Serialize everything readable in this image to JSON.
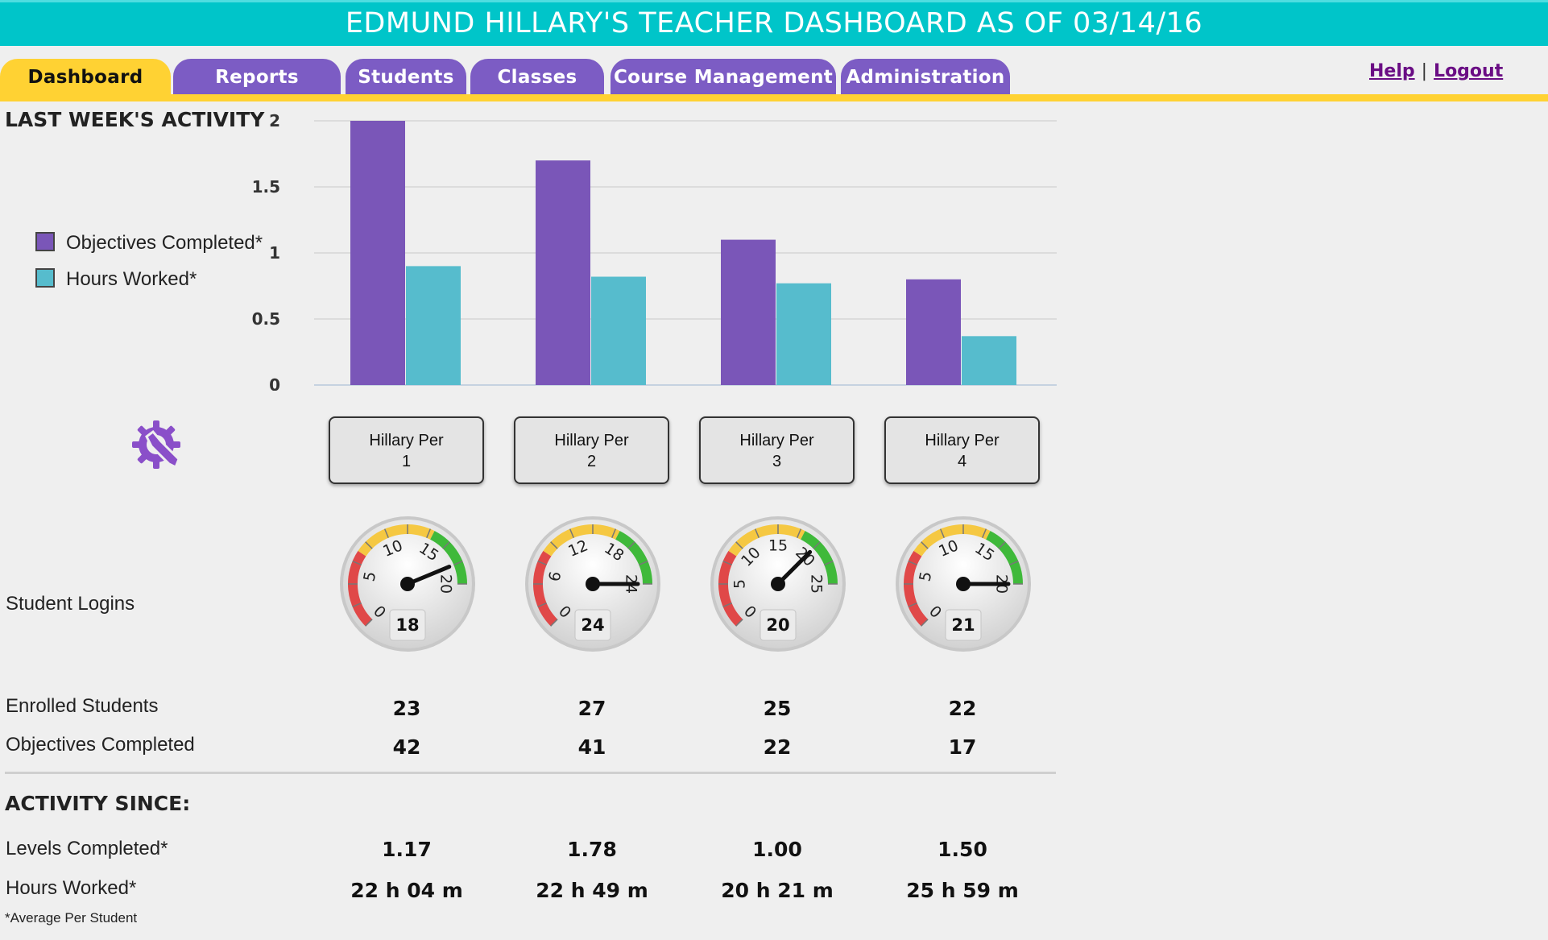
{
  "header": {
    "title": "EDMUND HILLARY'S TEACHER DASHBOARD AS OF 03/14/16"
  },
  "tabs": [
    {
      "label": "Dashboard",
      "active": true
    },
    {
      "label": "Reports",
      "active": false
    },
    {
      "label": "Students",
      "active": false
    },
    {
      "label": "Classes",
      "active": false
    },
    {
      "label": "Course Management",
      "active": false
    },
    {
      "label": "Administration",
      "active": false
    }
  ],
  "links": {
    "help": "Help",
    "separator": "|",
    "logout": "Logout"
  },
  "activity": {
    "heading": "LAST WEEK'S ACTIVITY",
    "legend": [
      {
        "label": "Objectives Completed*",
        "color": "#7a56b8"
      },
      {
        "label": "Hours Worked*",
        "color": "#56bccd"
      }
    ]
  },
  "chart_data": {
    "type": "bar",
    "title": "LAST WEEK'S ACTIVITY",
    "categories": [
      "Hillary Per 1",
      "Hillary Per 2",
      "Hillary Per 3",
      "Hillary Per 4"
    ],
    "series": [
      {
        "name": "Objectives Completed*",
        "color": "#7a56b8",
        "values": [
          2.0,
          1.7,
          1.1,
          0.8
        ]
      },
      {
        "name": "Hours Worked*",
        "color": "#56bccd",
        "values": [
          0.9,
          0.82,
          0.77,
          0.37
        ]
      }
    ],
    "yticks": [
      "2",
      "1.5",
      "1",
      "0.5",
      "0"
    ],
    "ylim": [
      0,
      2
    ],
    "grid": true,
    "legend_position": "left"
  },
  "classes": [
    {
      "label": "Hillary Per\n1",
      "gauge": {
        "value": "18",
        "max": 20,
        "ticks": [
          "0",
          "5",
          "10",
          "15",
          "20"
        ]
      },
      "enrolled": "23",
      "objectives": "42",
      "levels": "1.17",
      "hours": "22 h 04 m"
    },
    {
      "label": "Hillary Per\n2",
      "gauge": {
        "value": "24",
        "max": 24,
        "ticks": [
          "0",
          "6",
          "12",
          "18",
          "24"
        ]
      },
      "enrolled": "27",
      "objectives": "41",
      "levels": "1.78",
      "hours": "22 h 49 m"
    },
    {
      "label": "Hillary Per\n3",
      "gauge": {
        "value": "20",
        "max": 25,
        "ticks": [
          "0",
          "5",
          "10",
          "15",
          "20",
          "25"
        ]
      },
      "enrolled": "25",
      "objectives": "22",
      "levels": "1.00",
      "hours": "20 h 21 m"
    },
    {
      "label": "Hillary Per\n4",
      "gauge": {
        "value": "21",
        "max": 20,
        "ticks": [
          "0",
          "5",
          "10",
          "15",
          "20"
        ]
      },
      "enrolled": "22",
      "objectives": "17",
      "levels": "1.50",
      "hours": "25 h 59 m"
    }
  ],
  "rows": {
    "student_logins": "Student Logins",
    "enrolled": "Enrolled Students",
    "objectives": "Objectives Completed",
    "activity_since": "ACTIVITY SINCE:",
    "levels": "Levels Completed*",
    "hours": "Hours Worked*"
  },
  "footnote": "*Average Per Student",
  "icons": {
    "settings": "gear-wrench-icon"
  },
  "colors": {
    "header": "#00c5c9",
    "tab": "#7c5cc4",
    "active_tab": "#ffd233"
  }
}
